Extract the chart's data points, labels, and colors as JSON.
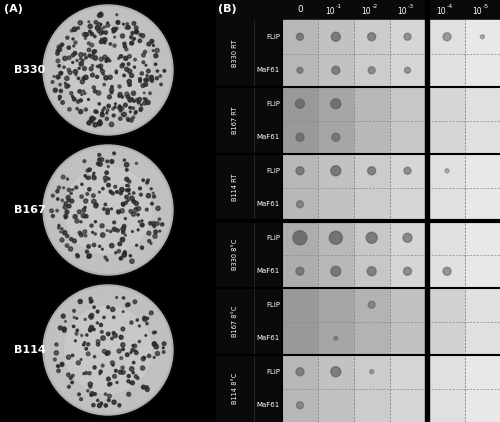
{
  "panel_A_label": "(A)",
  "panel_B_label": "(B)",
  "plate_labels": [
    "B330",
    "B167",
    "B114"
  ],
  "row_labels_left": [
    "B330 RT",
    "B167 RT",
    "B114 RT",
    "B330 8°C",
    "B167 8°C",
    "B114 8°C"
  ],
  "sub_row_labels": [
    "FLiP",
    "MaF61"
  ],
  "col_exponents": [
    "0",
    "-1",
    "-2",
    "-3",
    "-4",
    "-5"
  ],
  "background_color": "#000000",
  "text_color": "#ffffff",
  "spot_color": "#606060",
  "cell_grays": [
    [
      0.72,
      0.76,
      0.8,
      0.84,
      0.88,
      0.91
    ],
    [
      0.72,
      0.76,
      0.8,
      0.84,
      0.88,
      0.91
    ],
    [
      0.6,
      0.65,
      0.72,
      0.78,
      0.84,
      0.88
    ],
    [
      0.6,
      0.65,
      0.72,
      0.78,
      0.84,
      0.88
    ],
    [
      0.72,
      0.76,
      0.8,
      0.84,
      0.88,
      0.91
    ],
    [
      0.72,
      0.76,
      0.8,
      0.84,
      0.88,
      0.91
    ],
    [
      0.68,
      0.72,
      0.78,
      0.84,
      0.88,
      0.91
    ],
    [
      0.68,
      0.72,
      0.78,
      0.84,
      0.88,
      0.91
    ],
    [
      0.6,
      0.65,
      0.7,
      0.76,
      0.82,
      0.88
    ],
    [
      0.6,
      0.65,
      0.7,
      0.76,
      0.82,
      0.88
    ],
    [
      0.72,
      0.76,
      0.8,
      0.84,
      0.88,
      0.91
    ],
    [
      0.72,
      0.76,
      0.8,
      0.84,
      0.88,
      0.91
    ]
  ],
  "spots": [
    [
      [
        7,
        0.7
      ],
      [
        9,
        0.72
      ],
      [
        8,
        0.65
      ],
      [
        7,
        0.58
      ],
      [
        8,
        0.55
      ],
      [
        4,
        0.45
      ]
    ],
    [
      [
        6,
        0.65
      ],
      [
        8,
        0.68
      ],
      [
        7,
        0.6
      ],
      [
        6,
        0.55
      ],
      [
        0,
        0
      ],
      [
        0,
        0
      ]
    ],
    [
      [
        9,
        0.75
      ],
      [
        10,
        0.75
      ],
      [
        0,
        0
      ],
      [
        0,
        0
      ],
      [
        0,
        0
      ],
      [
        0,
        0
      ]
    ],
    [
      [
        8,
        0.7
      ],
      [
        8,
        0.68
      ],
      [
        0,
        0
      ],
      [
        0,
        0
      ],
      [
        0,
        0
      ],
      [
        0,
        0
      ]
    ],
    [
      [
        8,
        0.7
      ],
      [
        10,
        0.75
      ],
      [
        8,
        0.68
      ],
      [
        7,
        0.6
      ],
      [
        4,
        0.42
      ],
      [
        0,
        0
      ]
    ],
    [
      [
        7,
        0.6
      ],
      [
        0,
        0
      ],
      [
        0,
        0
      ],
      [
        0,
        0
      ],
      [
        0,
        0
      ],
      [
        0,
        0
      ]
    ],
    [
      [
        14,
        0.8
      ],
      [
        13,
        0.78
      ],
      [
        11,
        0.72
      ],
      [
        9,
        0.65
      ],
      [
        0,
        0
      ],
      [
        0,
        0
      ]
    ],
    [
      [
        8,
        0.68
      ],
      [
        10,
        0.72
      ],
      [
        9,
        0.68
      ],
      [
        8,
        0.62
      ],
      [
        8,
        0.58
      ],
      [
        0,
        0
      ]
    ],
    [
      [
        0,
        0
      ],
      [
        0,
        0
      ],
      [
        7,
        0.55
      ],
      [
        0,
        0
      ],
      [
        0,
        0
      ],
      [
        0,
        0
      ]
    ],
    [
      [
        0,
        0
      ],
      [
        4,
        0.5
      ],
      [
        0,
        0
      ],
      [
        0,
        0
      ],
      [
        0,
        0
      ],
      [
        0,
        0
      ]
    ],
    [
      [
        8,
        0.65
      ],
      [
        10,
        0.7
      ],
      [
        4,
        0.48
      ],
      [
        0,
        0
      ],
      [
        0,
        0
      ],
      [
        0,
        0
      ]
    ],
    [
      [
        7,
        0.58
      ],
      [
        0,
        0
      ],
      [
        0,
        0
      ],
      [
        0,
        0
      ],
      [
        0,
        0
      ],
      [
        0,
        0
      ]
    ]
  ]
}
